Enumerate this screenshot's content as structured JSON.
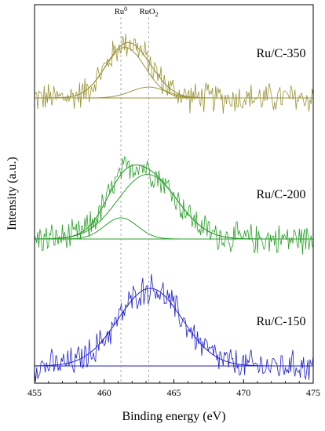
{
  "chart_data": {
    "type": "line",
    "xlabel": "Binding energy (eV)",
    "ylabel": "Intensity (a.u.)",
    "xlim": [
      455,
      475
    ],
    "xticks": [
      "455",
      "460",
      "465",
      "470",
      "475"
    ],
    "y_ticks_shown": false,
    "reference_lines": [
      {
        "label": "Ru",
        "sup": "0",
        "x": 461.2,
        "style": "dashed"
      },
      {
        "label": "RuO",
        "sub": "2",
        "x": 463.2,
        "style": "dashed"
      }
    ],
    "panels": [
      {
        "name": "Ru/C-350",
        "color": "#9a9436",
        "noise_amplitude": 0.5,
        "peaks": [
          {
            "center": 461.5,
            "fwhm": 3.4,
            "height": 1.95
          },
          {
            "center": 463.2,
            "fwhm": 3.0,
            "height": 0.42
          }
        ]
      },
      {
        "name": "Ru/C-200",
        "color": "#2aa02a",
        "noise_amplitude": 0.5,
        "peaks": [
          {
            "center": 461.2,
            "fwhm": 2.8,
            "height": 0.82
          },
          {
            "center": 463.1,
            "fwhm": 5.0,
            "height": 2.5
          }
        ]
      },
      {
        "name": "Ru/C-150",
        "color": "#2020d0",
        "noise_amplitude": 0.5,
        "peaks": [
          {
            "center": 463.3,
            "fwhm": 5.4,
            "height": 3.0
          }
        ]
      }
    ]
  }
}
